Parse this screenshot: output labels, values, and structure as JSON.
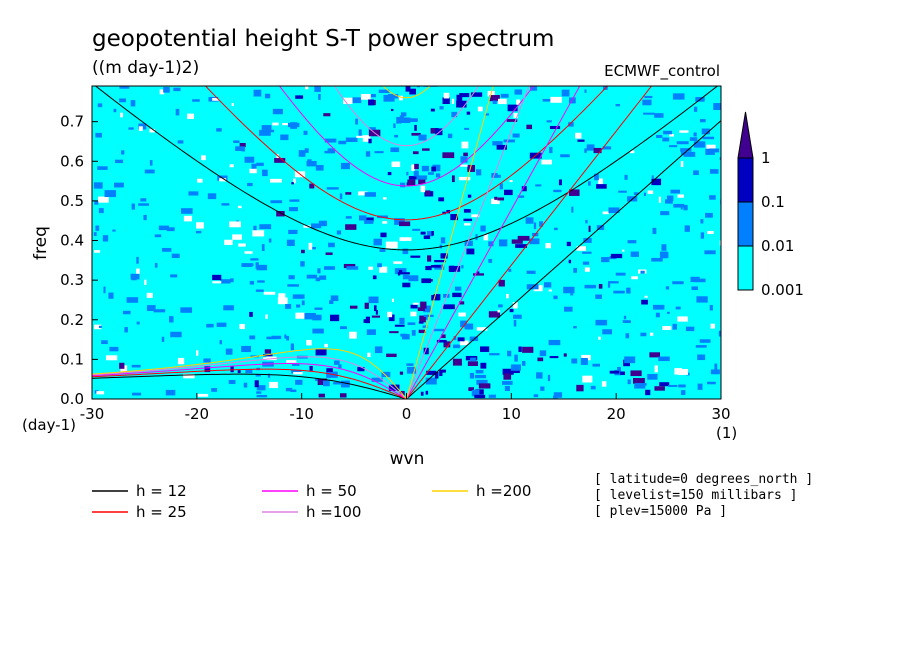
{
  "title": "geopotential height S-T power spectrum",
  "subtitle": "((m day-1)2)",
  "dataset": "ECMWF_control",
  "chart_data": {
    "type": "heatmap",
    "xlabel": "wvn",
    "ylabel": "freq",
    "x_unit": "(1)",
    "y_unit": "(day-1)",
    "xlim": [
      -30,
      30
    ],
    "ylim": [
      0,
      0.79
    ],
    "x_ticks": [
      "-30",
      "-20",
      "-10",
      "0",
      "10",
      "20",
      "30"
    ],
    "y_ticks": [
      "0.0",
      "0.1",
      "0.2",
      "0.3",
      "0.4",
      "0.5",
      "0.6",
      "0.7"
    ],
    "colorbar": {
      "levels": [
        "0.001",
        "0.01",
        "0.1",
        "1"
      ],
      "colors": [
        "#00ffff",
        "#0080ff",
        "#0000c0",
        "#400090"
      ],
      "log_scale": true
    },
    "dispersion_curves": [
      {
        "name": "h = 12",
        "h": 12,
        "color": "#000000"
      },
      {
        "name": "h = 25",
        "h": 25,
        "color": "#ff0000"
      },
      {
        "name": "h = 50",
        "h": 50,
        "color": "#ff00ff"
      },
      {
        "name": "h =100",
        "h": 100,
        "color": "#e080e0"
      },
      {
        "name": "h =200",
        "h": 200,
        "color": "#ffd000"
      }
    ]
  },
  "metadata_lines": [
    "[ latitude=0 degrees_north ]",
    "[ levelist=150 millibars ]",
    "[ plev=15000 Pa ]"
  ]
}
